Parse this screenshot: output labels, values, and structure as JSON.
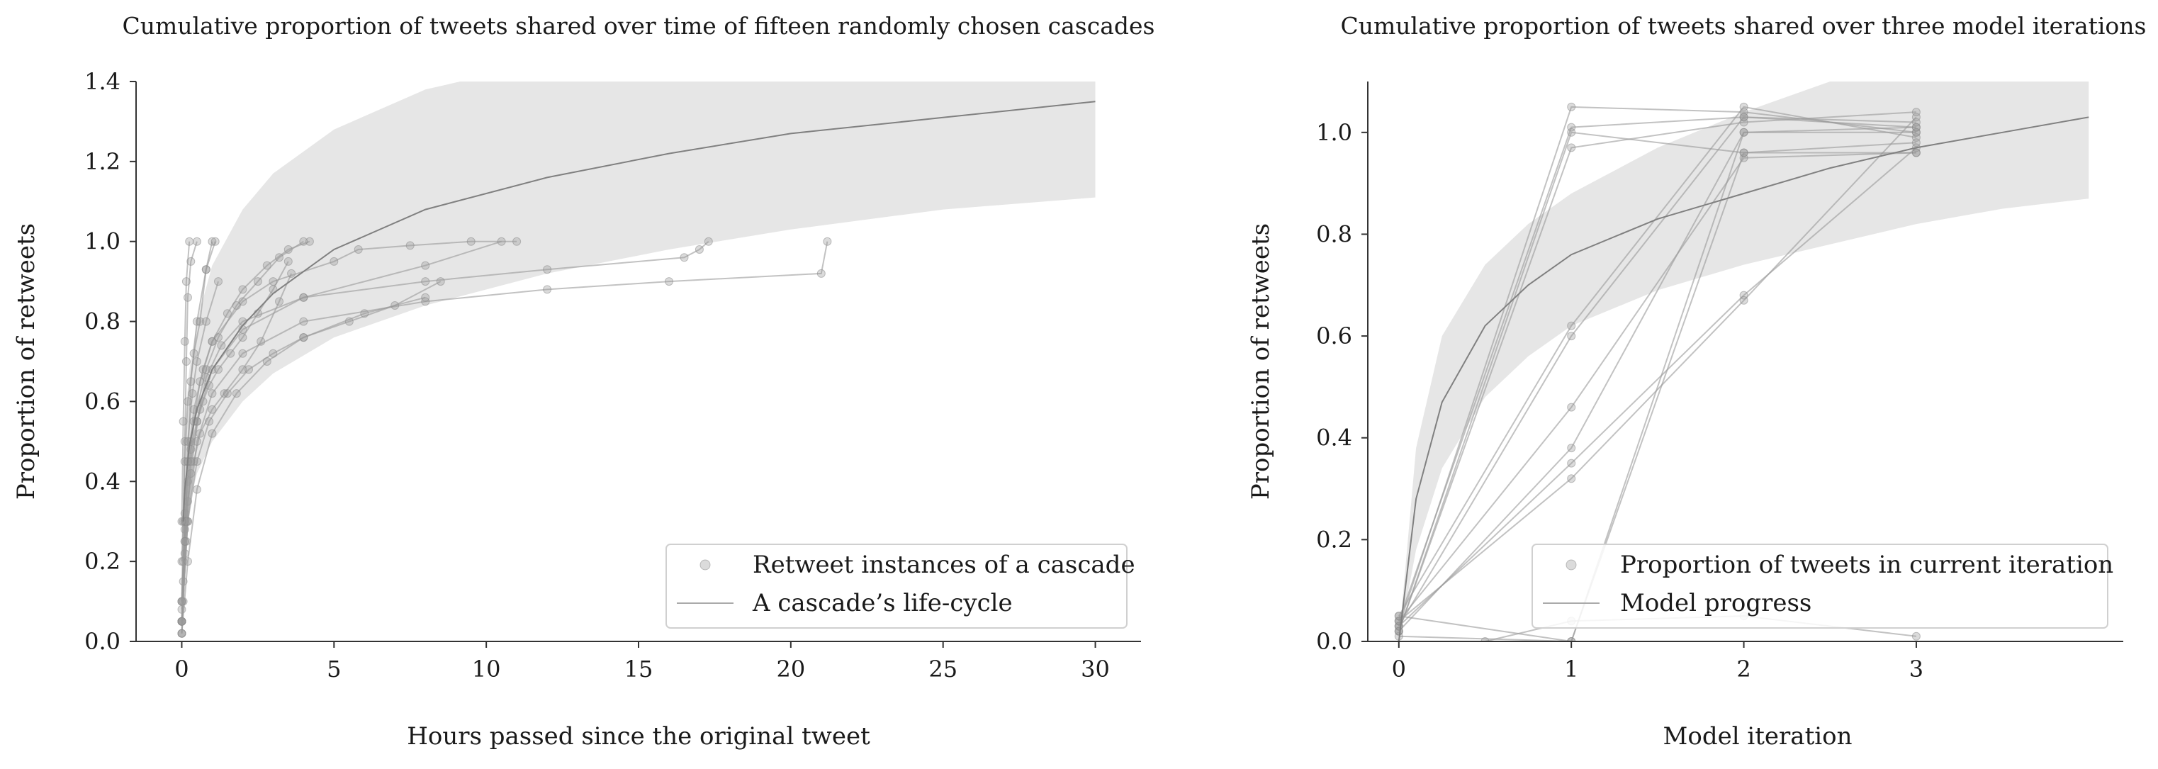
{
  "chart_data": [
    {
      "type": "scatter",
      "title": "Cumulative proportion of tweets shared over time of fifteen randomly chosen cascades",
      "xlabel": "Hours passed since the original tweet",
      "ylabel": "Proportion of retweets",
      "xlim": [
        -1.5,
        31.5
      ],
      "ylim": [
        0.0,
        1.4
      ],
      "xticks": [
        0,
        5,
        10,
        15,
        20,
        25,
        30
      ],
      "yticks": [
        0.0,
        0.2,
        0.4,
        0.6,
        0.8,
        1.0,
        1.2,
        1.4
      ],
      "xtick_labels": [
        "0",
        "5",
        "10",
        "15",
        "20",
        "25",
        "30"
      ],
      "ytick_labels": [
        "0.0",
        "0.2",
        "0.4",
        "0.6",
        "0.8",
        "1.0",
        "1.2",
        "1.4"
      ],
      "grid": false,
      "legend_position": "lower-right",
      "legend": [
        "Retweet instances of a cascade",
        "A cascade’s life-cycle"
      ],
      "trend": {
        "x": [
          0.05,
          0.1,
          0.25,
          0.5,
          1,
          2,
          3,
          5,
          8,
          12,
          16,
          20,
          25,
          30
        ],
        "y": [
          0.3,
          0.38,
          0.49,
          0.58,
          0.68,
          0.79,
          0.87,
          0.98,
          1.08,
          1.16,
          1.22,
          1.27,
          1.31,
          1.35
        ],
        "lower": [
          0.18,
          0.24,
          0.34,
          0.42,
          0.5,
          0.6,
          0.67,
          0.76,
          0.84,
          0.92,
          0.98,
          1.03,
          1.08,
          1.11
        ],
        "upper": [
          0.45,
          0.55,
          0.68,
          0.8,
          0.94,
          1.08,
          1.17,
          1.28,
          1.38,
          1.45,
          1.5,
          1.53,
          1.56,
          1.58
        ]
      },
      "series": [
        {
          "x": [
            0,
            0.05,
            0.1,
            0.2,
            0.3,
            0.5,
            0.7,
            0.9,
            1.2,
            1.6,
            2.0,
            2.5,
            3.0,
            3.5
          ],
          "y": [
            0.02,
            0.15,
            0.28,
            0.4,
            0.48,
            0.55,
            0.6,
            0.64,
            0.68,
            0.72,
            0.76,
            0.82,
            0.88,
            0.95
          ]
        },
        {
          "x": [
            0,
            0.1,
            0.2,
            0.4,
            0.6,
            1.0,
            1.4,
            2.0,
            2.6,
            3.2,
            3.6
          ],
          "y": [
            0.05,
            0.22,
            0.35,
            0.45,
            0.52,
            0.58,
            0.62,
            0.68,
            0.75,
            0.85,
            0.92
          ]
        },
        {
          "x": [
            0,
            0.05,
            0.1,
            0.2,
            0.4,
            0.7,
            1.0,
            1.5,
            2.0,
            2.8,
            3.5,
            4.2
          ],
          "y": [
            0.08,
            0.2,
            0.32,
            0.45,
            0.58,
            0.68,
            0.75,
            0.82,
            0.88,
            0.94,
            0.98,
            1.0
          ]
        },
        {
          "x": [
            0,
            0.1,
            0.3,
            0.6,
            1.0,
            2.0,
            3.0,
            5.0,
            5.8,
            7.5,
            9.5,
            11.0
          ],
          "y": [
            0.1,
            0.3,
            0.5,
            0.65,
            0.75,
            0.85,
            0.9,
            0.95,
            0.98,
            0.99,
            1.0,
            1.0
          ]
        },
        {
          "x": [
            0,
            0.05,
            0.15,
            0.3,
            0.5,
            0.8,
            1.3,
            2.0,
            4.0,
            8.0,
            12.0,
            16.5,
            17.0,
            17.3
          ],
          "y": [
            0.02,
            0.1,
            0.25,
            0.42,
            0.55,
            0.66,
            0.74,
            0.8,
            0.86,
            0.9,
            0.93,
            0.96,
            0.98,
            1.0
          ]
        },
        {
          "x": [
            0,
            0.2,
            0.5,
            1.0,
            2.0,
            4.0,
            8.0,
            12.0,
            16.0,
            21.0,
            21.2
          ],
          "y": [
            0.05,
            0.3,
            0.5,
            0.62,
            0.72,
            0.8,
            0.85,
            0.88,
            0.9,
            0.92,
            1.0
          ]
        },
        {
          "x": [
            0,
            0.05,
            0.1,
            0.15,
            0.2,
            0.3,
            0.5
          ],
          "y": [
            0.1,
            0.3,
            0.5,
            0.7,
            0.86,
            0.95,
            1.0
          ]
        },
        {
          "x": [
            0,
            0.1,
            0.2,
            0.3,
            0.5,
            0.8,
            1.0
          ],
          "y": [
            0.05,
            0.25,
            0.45,
            0.65,
            0.8,
            0.93,
            1.0
          ]
        },
        {
          "x": [
            0,
            0.1,
            0.2,
            0.4,
            0.6,
            0.8,
            1.1
          ],
          "y": [
            0.2,
            0.45,
            0.6,
            0.72,
            0.8,
            0.93,
            1.0
          ]
        },
        {
          "x": [
            0,
            0.2,
            0.5,
            0.9,
            1.5,
            2.2,
            3.0,
            4.0,
            5.5,
            7.0,
            8.5
          ],
          "y": [
            0.05,
            0.3,
            0.45,
            0.55,
            0.62,
            0.68,
            0.72,
            0.76,
            0.8,
            0.84,
            0.9
          ]
        },
        {
          "x": [
            0,
            0.1,
            0.2,
            0.35,
            0.5,
            0.8,
            1.2
          ],
          "y": [
            0.1,
            0.3,
            0.5,
            0.62,
            0.7,
            0.8,
            0.9
          ]
        },
        {
          "x": [
            0,
            0.15,
            0.4,
            0.8,
            1.2,
            1.8,
            2.5,
            3.2,
            4.0
          ],
          "y": [
            0.05,
            0.3,
            0.55,
            0.68,
            0.76,
            0.84,
            0.9,
            0.96,
            1.0
          ]
        },
        {
          "x": [
            0,
            0.1,
            0.3,
            0.6,
            1.0,
            2.0,
            4.0,
            8.0,
            10.5
          ],
          "y": [
            0.05,
            0.25,
            0.45,
            0.58,
            0.68,
            0.78,
            0.86,
            0.94,
            1.0
          ]
        },
        {
          "x": [
            0,
            0.05,
            0.1,
            0.15,
            0.25
          ],
          "y": [
            0.3,
            0.55,
            0.75,
            0.9,
            1.0
          ]
        },
        {
          "x": [
            0,
            0.2,
            0.5,
            1.0,
            1.8,
            2.8,
            4.0,
            6.0,
            8.0
          ],
          "y": [
            0.02,
            0.2,
            0.38,
            0.52,
            0.62,
            0.7,
            0.76,
            0.82,
            0.86
          ]
        }
      ]
    },
    {
      "type": "line",
      "title": "Cumulative proportion of tweets shared over three model iterations",
      "xlabel": "Model iteration",
      "ylabel": "Proportion of retweets",
      "xlim": [
        -0.18,
        4.2
      ],
      "ylim": [
        0.0,
        1.1
      ],
      "xticks": [
        0,
        1,
        2,
        3
      ],
      "yticks": [
        0.0,
        0.2,
        0.4,
        0.6,
        0.8,
        1.0
      ],
      "xtick_labels": [
        "0",
        "1",
        "2",
        "3"
      ],
      "ytick_labels": [
        "0.0",
        "0.2",
        "0.4",
        "0.6",
        "0.8",
        "1.0"
      ],
      "grid": false,
      "legend_position": "lower-right",
      "legend": [
        "Proportion of tweets in current iteration",
        "Model progress"
      ],
      "trend": {
        "x": [
          0,
          0.1,
          0.25,
          0.5,
          0.75,
          1.0,
          1.5,
          2.0,
          2.5,
          3.0,
          3.5,
          4.0
        ],
        "y": [
          0.0,
          0.28,
          0.47,
          0.62,
          0.7,
          0.76,
          0.83,
          0.88,
          0.93,
          0.97,
          1.0,
          1.03
        ],
        "lower": [
          0.0,
          0.18,
          0.34,
          0.48,
          0.56,
          0.62,
          0.69,
          0.74,
          0.78,
          0.82,
          0.85,
          0.87
        ],
        "upper": [
          0.0,
          0.38,
          0.6,
          0.74,
          0.82,
          0.88,
          0.97,
          1.04,
          1.1,
          1.15,
          1.18,
          1.2
        ]
      },
      "series": [
        {
          "x": [
            0,
            1,
            2,
            3
          ],
          "y": [
            0.03,
            1.05,
            1.04,
            1.0
          ]
        },
        {
          "x": [
            0,
            1,
            2,
            3
          ],
          "y": [
            0.04,
            1.01,
            1.03,
            1.01
          ]
        },
        {
          "x": [
            0,
            1,
            2,
            3
          ],
          "y": [
            0.02,
            0.97,
            1.02,
            1.04
          ]
        },
        {
          "x": [
            0,
            1,
            2,
            3
          ],
          "y": [
            0.05,
            0.62,
            1.05,
            0.99
          ]
        },
        {
          "x": [
            0,
            1,
            2,
            3
          ],
          "y": [
            0.03,
            0.6,
            1.03,
            1.02
          ]
        },
        {
          "x": [
            0,
            1,
            2,
            3
          ],
          "y": [
            0.04,
            0.46,
            0.95,
            0.96
          ]
        },
        {
          "x": [
            0,
            1,
            2,
            3
          ],
          "y": [
            0.02,
            0.38,
            1.0,
            1.0
          ]
        },
        {
          "x": [
            0,
            1,
            2,
            3
          ],
          "y": [
            0.03,
            0.35,
            0.68,
            0.97
          ]
        },
        {
          "x": [
            0,
            1,
            2,
            3
          ],
          "y": [
            0.04,
            0.32,
            0.67,
            1.03
          ]
        },
        {
          "x": [
            0,
            1,
            2,
            3
          ],
          "y": [
            0.01,
            0.0,
            0.96,
            0.98
          ]
        },
        {
          "x": [
            0,
            1,
            2,
            3
          ],
          "y": [
            0.05,
            0.0,
            1.0,
            1.01
          ]
        },
        {
          "x": [
            0.5,
            1,
            2,
            3
          ],
          "y": [
            0.0,
            0.04,
            0.05,
            0.01
          ]
        },
        {
          "x": [
            0,
            1,
            2,
            3
          ],
          "y": [
            0.02,
            1.0,
            0.96,
            0.96
          ]
        }
      ]
    }
  ]
}
